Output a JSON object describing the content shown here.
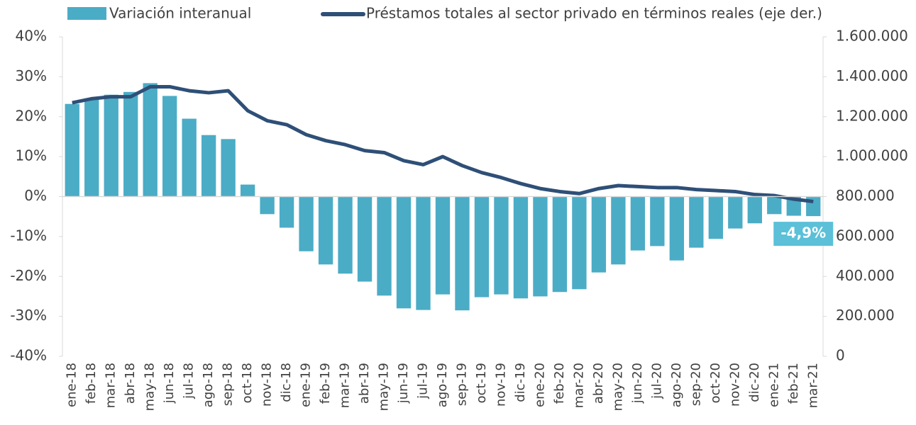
{
  "chart_data": {
    "type": "bar",
    "categories": [
      "ene-18",
      "feb-18",
      "mar-18",
      "abr-18",
      "may-18",
      "jun-18",
      "jul-18",
      "ago-18",
      "sep-18",
      "oct-18",
      "nov-18",
      "dic-18",
      "ene-19",
      "feb-19",
      "mar-19",
      "abr-19",
      "may-19",
      "jun-19",
      "jul-19",
      "ago-19",
      "sep-19",
      "oct-19",
      "nov-19",
      "dic-19",
      "ene-20",
      "feb-20",
      "mar-20",
      "abr-20",
      "may-20",
      "jun-20",
      "jul-20",
      "ago-20",
      "sep-20",
      "oct-20",
      "nov-20",
      "dic-20",
      "ene-21",
      "feb-21",
      "mar-21"
    ],
    "series": [
      {
        "name": "Variación interanual",
        "type": "bar",
        "color": "#4bacc6",
        "values": [
          23.2,
          24.6,
          25.5,
          26.2,
          28.4,
          25.2,
          19.5,
          15.4,
          14.4,
          3.0,
          -4.4,
          -7.8,
          -13.7,
          -17.0,
          -19.3,
          -21.3,
          -24.8,
          -28.0,
          -28.4,
          -24.5,
          -28.5,
          -25.2,
          -24.5,
          -25.5,
          -25.0,
          -23.9,
          -23.2,
          -19.0,
          -17.0,
          -13.5,
          -12.4,
          -16.0,
          -12.8,
          -10.6,
          -8.0,
          -6.7,
          -4.4,
          -4.8,
          -4.9
        ],
        "value_labels": [
          null,
          null,
          null,
          null,
          null,
          null,
          null,
          null,
          null,
          null,
          null,
          null,
          null,
          null,
          null,
          null,
          null,
          null,
          null,
          null,
          null,
          null,
          null,
          null,
          null,
          null,
          null,
          null,
          null,
          null,
          null,
          null,
          null,
          null,
          null,
          null,
          null,
          null,
          "-4,9%"
        ]
      },
      {
        "name": "Préstamos totales al sector privado en términos reales (eje der.)",
        "type": "line",
        "axis": "y2",
        "color": "#2e4f77",
        "values": [
          1270000,
          1290000,
          1300000,
          1300000,
          1350000,
          1350000,
          1330000,
          1320000,
          1330000,
          1230000,
          1180000,
          1160000,
          1110000,
          1080000,
          1060000,
          1030000,
          1020000,
          980000,
          960000,
          1000000,
          955000,
          920000,
          895000,
          865000,
          840000,
          825000,
          815000,
          840000,
          855000,
          850000,
          845000,
          845000,
          835000,
          830000,
          825000,
          810000,
          805000,
          787000,
          775000
        ]
      }
    ],
    "ylim": [
      -40,
      40
    ],
    "yticks": [
      {
        "value": -40,
        "label": "-40%"
      },
      {
        "value": -30,
        "label": "-30%"
      },
      {
        "value": -20,
        "label": "-20%"
      },
      {
        "value": -10,
        "label": "-10%"
      },
      {
        "value": 0,
        "label": "0%"
      },
      {
        "value": 10,
        "label": "10%"
      },
      {
        "value": 20,
        "label": "20%"
      },
      {
        "value": 30,
        "label": "30%"
      },
      {
        "value": 40,
        "label": "40%"
      }
    ],
    "y2lim": [
      0,
      1600000
    ],
    "y2ticks": [
      0,
      {
        "value": 200000,
        "label": "200.000"
      },
      {
        "value": 400000,
        "label": "400.000"
      },
      {
        "value": 600000,
        "label": "600.000"
      },
      {
        "value": 800000,
        "label": "800.000"
      },
      {
        "value": 1000000,
        "label": "1.000.000"
      },
      {
        "value": 1200000,
        "label": "1.200.000"
      },
      {
        "value": 1400000,
        "label": "1.400.000"
      },
      {
        "value": 1600000,
        "label": "1.600.000"
      }
    ],
    "legend": "top"
  }
}
